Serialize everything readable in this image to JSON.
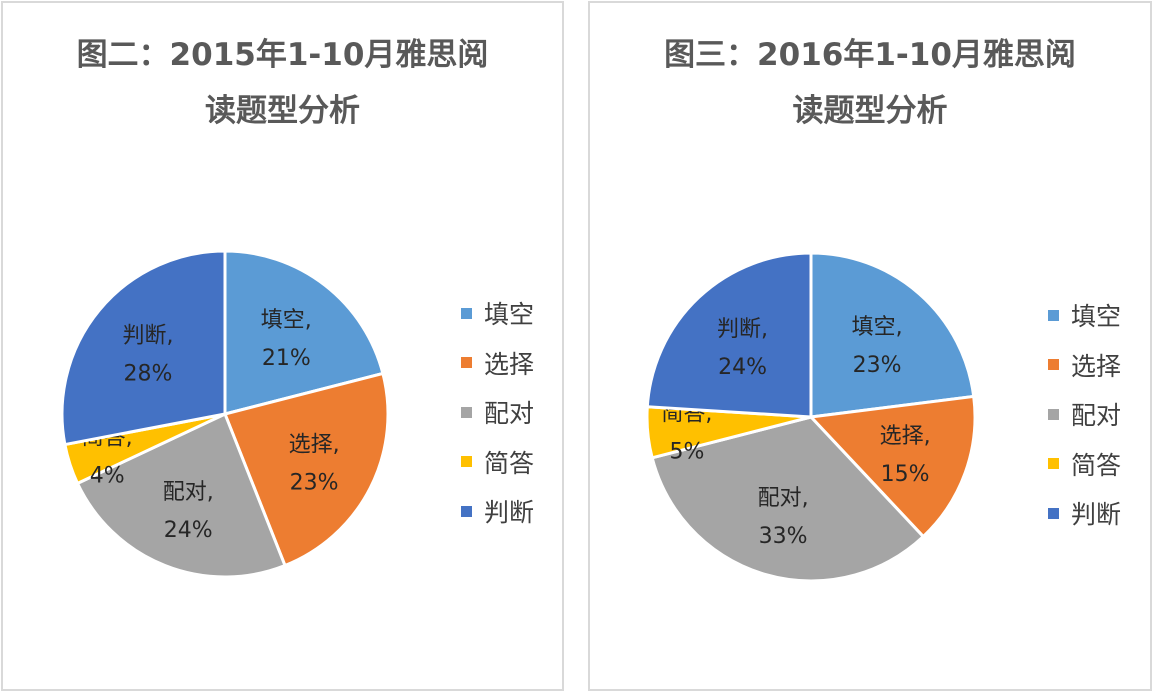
{
  "chart_data": [
    {
      "type": "pie",
      "title_lines": [
        "图二：2015年1-10月雅思阅",
        "读题型分析"
      ],
      "slices": [
        {
          "name": "填空",
          "value": 21,
          "label": "21%",
          "color": "#5b9bd5"
        },
        {
          "name": "选择",
          "value": 23,
          "label": "23%",
          "color": "#ed7d31"
        },
        {
          "name": "配对",
          "value": 24,
          "label": "24%",
          "color": "#a5a5a5"
        },
        {
          "name": "简答",
          "value": 4,
          "label": "4%",
          "color": "#ffc000"
        },
        {
          "name": "判断",
          "value": 28,
          "label": "28%",
          "color": "#4472c4"
        }
      ],
      "legend_position": "right"
    },
    {
      "type": "pie",
      "title_lines": [
        "图三：2016年1-10月雅思阅",
        "读题型分析"
      ],
      "slices": [
        {
          "name": "填空",
          "value": 23,
          "label": "23%",
          "color": "#5b9bd5"
        },
        {
          "name": "选择",
          "value": 15,
          "label": "15%",
          "color": "#ed7d31"
        },
        {
          "name": "配对",
          "value": 33,
          "label": "33%",
          "color": "#a5a5a5"
        },
        {
          "name": "简答",
          "value": 5,
          "label": "5%",
          "color": "#ffc000"
        },
        {
          "name": "判断",
          "value": 24,
          "label": "24%",
          "color": "#4472c4"
        }
      ],
      "legend_position": "right"
    }
  ]
}
